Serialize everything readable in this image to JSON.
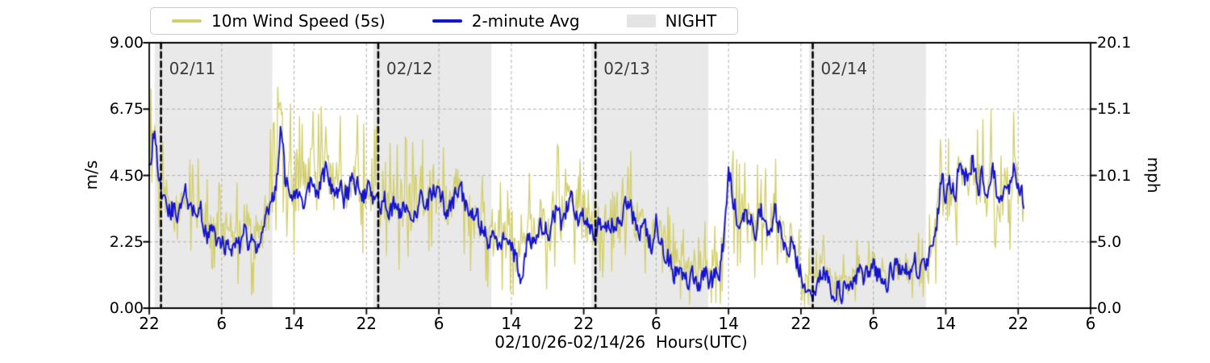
{
  "chart_data": {
    "type": "line",
    "title": "",
    "xlabel": "02/10/26-02/14/26  Hours(UTC)",
    "ylabel_left": "m/s",
    "ylabel_right": "mph",
    "night_label": "NIGHT",
    "x_range_hours": [
      0,
      104
    ],
    "x_start_datetime_label": "02/10 22:00 UTC",
    "x_tick_hours": [
      0,
      8,
      16,
      24,
      32,
      40,
      48,
      56,
      64,
      72,
      80,
      88,
      96,
      104
    ],
    "x_tick_labels": [
      "22",
      "6",
      "14",
      "22",
      "6",
      "14",
      "22",
      "6",
      "14",
      "22",
      "6",
      "14",
      "22",
      "6"
    ],
    "ylim_left": [
      0,
      9
    ],
    "y_ticks_left_values": [
      0,
      2.25,
      4.5,
      6.75,
      9
    ],
    "y_ticks_left_labels": [
      "0.00",
      "2.25",
      "4.50",
      "6.75",
      "9.00"
    ],
    "y_ticks_right_labels": [
      "0.0",
      "5.0",
      "10.1",
      "15.1",
      "20.1"
    ],
    "grid": true,
    "legend_position": "top-left-above-axes",
    "night_bands_hours": [
      [
        0.6,
        13.6
      ],
      [
        24.75,
        37.8
      ],
      [
        48.85,
        61.75
      ],
      [
        72.9,
        85.8
      ]
    ],
    "night_band_color": "#e9e9e9",
    "grid_color": "#b0b0b0",
    "day_lines": [
      {
        "hour": 1.3,
        "label": "02/11"
      },
      {
        "hour": 25.3,
        "label": "02/12"
      },
      {
        "hour": 49.3,
        "label": "02/13"
      },
      {
        "hour": 73.3,
        "label": "02/14"
      }
    ],
    "data_end_hour": 96.6,
    "series": [
      {
        "name": "10m Wind Speed (5s)",
        "color": "#d3cf6b",
        "role": "raw-5s-envelope",
        "spread_step_hours": 4,
        "spread_hi": [
          2.4,
          1.5,
          2.2,
          2.3,
          2.9,
          2.6,
          2.4,
          2.5,
          2.2,
          2.0,
          2.2,
          2.3,
          2.4,
          2.4,
          1.8,
          1.8,
          1.9,
          2.1,
          1.4,
          1.3,
          1.1,
          1.1,
          1.9,
          2.2,
          1.6,
          1.6,
          1.6
        ],
        "spread_lo": [
          1.6,
          1.6,
          1.3,
          1.8,
          2.2,
          2.2,
          2.1,
          2.0,
          2.0,
          1.7,
          1.8,
          2.0,
          1.9,
          1.9,
          1.3,
          0.9,
          1.8,
          1.9,
          0.9,
          0.7,
          1.0,
          1.0,
          2.4,
          2.4,
          2.0,
          2.0,
          2.0
        ]
      },
      {
        "name": "2-minute Avg",
        "color": "#1313d2",
        "role": "2min-average",
        "sample_step_hours": 0.5,
        "values": [
          4.6,
          6.2,
          4.2,
          3.6,
          3.2,
          3.4,
          3.1,
          3.3,
          3.8,
          3.5,
          3.3,
          3.4,
          2.9,
          2.4,
          2.6,
          2.3,
          2.1,
          2.3,
          2.0,
          2.2,
          2.1,
          2.5,
          2.2,
          2.1,
          2.3,
          2.8,
          3.2,
          3.7,
          4.3,
          6.1,
          4.2,
          4.3,
          3.8,
          4.1,
          3.6,
          3.9,
          4.4,
          4.0,
          4.3,
          4.6,
          4.2,
          3.8,
          4.1,
          3.7,
          4.0,
          4.4,
          4.1,
          3.8,
          4.0,
          3.7,
          3.9,
          3.6,
          3.8,
          3.3,
          3.5,
          3.2,
          3.4,
          3.6,
          3.2,
          3.5,
          3.7,
          3.4,
          3.8,
          4.1,
          3.7,
          3.5,
          3.2,
          3.4,
          4.3,
          3.8,
          3.3,
          3.0,
          3.2,
          2.8,
          2.6,
          2.3,
          2.5,
          2.2,
          2.4,
          2.0,
          2.3,
          1.6,
          0.9,
          1.8,
          2.4,
          2.0,
          2.6,
          2.9,
          2.5,
          3.1,
          3.4,
          2.9,
          3.3,
          3.8,
          3.3,
          2.9,
          3.1,
          2.7,
          2.4,
          2.7,
          2.9,
          2.6,
          2.8,
          3.1,
          2.7,
          3.3,
          3.6,
          3.0,
          2.6,
          2.9,
          2.4,
          2.1,
          2.9,
          2.4,
          1.9,
          1.5,
          1.2,
          1.5,
          1.1,
          0.9,
          1.2,
          0.5,
          0.9,
          1.2,
          0.8,
          1.0,
          1.4,
          2.5,
          4.7,
          3.6,
          3.0,
          3.5,
          2.8,
          3.2,
          2.6,
          3.4,
          2.9,
          2.4,
          3.5,
          2.8,
          2.4,
          1.9,
          2.3,
          1.6,
          1.1,
          0.5,
          0.8,
          0.4,
          0.9,
          1.3,
          0.7,
          0.4,
          0.8,
          0.5,
          0.9,
          0.6,
          1.0,
          1.3,
          1.0,
          1.2,
          1.5,
          1.1,
          1.3,
          0.9,
          1.2,
          1.6,
          1.2,
          1.4,
          1.1,
          1.6,
          1.3,
          1.7,
          1.5,
          2.2,
          3.0,
          4.4,
          3.8,
          4.2,
          3.6,
          5.3,
          4.3,
          4.8,
          5.1,
          4.0,
          4.5,
          3.6,
          4.8,
          4.1,
          3.4,
          4.4,
          3.8,
          5.0,
          4.2,
          3.8
        ]
      }
    ]
  }
}
